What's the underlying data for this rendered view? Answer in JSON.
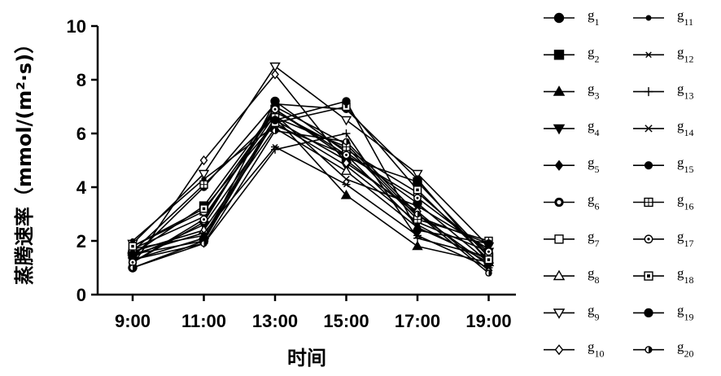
{
  "chart_data": {
    "type": "line",
    "categories": [
      "9:00",
      "11:00",
      "13:00",
      "15:00",
      "17:00",
      "19:00"
    ],
    "ylim": [
      0,
      10
    ],
    "yticks": [
      "0",
      "2",
      "4",
      "6",
      "8",
      "10"
    ],
    "xlabel": "时间",
    "ylabel": "蒸腾速率（mmol/(m²·s)）",
    "grid": false,
    "legend_position": "right",
    "series": [
      {
        "name": "g",
        "sub": "1",
        "marker": "circle-filled",
        "values": [
          1.0,
          2.0,
          7.2,
          5.3,
          3.4,
          1.2
        ]
      },
      {
        "name": "g",
        "sub": "2",
        "marker": "square-filled",
        "values": [
          1.5,
          3.3,
          6.9,
          5.1,
          4.2,
          1.4
        ]
      },
      {
        "name": "g",
        "sub": "3",
        "marker": "triangle-filled",
        "values": [
          1.7,
          2.2,
          6.6,
          3.7,
          1.8,
          1.2
        ]
      },
      {
        "name": "g",
        "sub": "4",
        "marker": "triangle-down-filled",
        "values": [
          1.4,
          2.6,
          6.4,
          4.8,
          2.7,
          1.6
        ]
      },
      {
        "name": "g",
        "sub": "5",
        "marker": "diamond-filled",
        "values": [
          1.3,
          2.1,
          6.5,
          5.0,
          3.0,
          1.1
        ]
      },
      {
        "name": "g",
        "sub": "6",
        "marker": "circle-ring",
        "values": [
          1.2,
          2.7,
          7.0,
          5.6,
          2.9,
          1.9
        ]
      },
      {
        "name": "g",
        "sub": "7",
        "marker": "square-open",
        "values": [
          1.8,
          3.1,
          6.8,
          5.4,
          3.8,
          1.5
        ]
      },
      {
        "name": "g",
        "sub": "8",
        "marker": "triangle-open",
        "values": [
          1.6,
          2.4,
          6.2,
          4.6,
          2.5,
          1.3
        ]
      },
      {
        "name": "g",
        "sub": "9",
        "marker": "triangle-down-open",
        "values": [
          1.9,
          4.5,
          8.5,
          6.5,
          4.5,
          1.8
        ]
      },
      {
        "name": "g",
        "sub": "10",
        "marker": "diamond-open",
        "values": [
          1.1,
          5.0,
          8.2,
          4.9,
          3.1,
          0.9
        ]
      },
      {
        "name": "g",
        "sub": "11",
        "marker": "dot-small",
        "values": [
          2.0,
          4.3,
          6.3,
          5.2,
          2.6,
          1.2
        ]
      },
      {
        "name": "g",
        "sub": "12",
        "marker": "star",
        "values": [
          1.5,
          2.3,
          5.5,
          4.1,
          2.2,
          1.0
        ]
      },
      {
        "name": "g",
        "sub": "13",
        "marker": "plus",
        "values": [
          1.3,
          1.9,
          5.4,
          6.0,
          2.1,
          1.4
        ]
      },
      {
        "name": "g",
        "sub": "14",
        "marker": "cross",
        "values": [
          1.7,
          2.9,
          6.7,
          4.3,
          3.3,
          1.7
        ]
      },
      {
        "name": "g",
        "sub": "15",
        "marker": "circle-filled-small",
        "values": [
          1.4,
          4.0,
          7.1,
          6.9,
          4.3,
          1.2
        ]
      },
      {
        "name": "g",
        "sub": "16",
        "marker": "square-cross",
        "values": [
          1.6,
          4.1,
          6.6,
          5.5,
          2.8,
          2.0
        ]
      },
      {
        "name": "g",
        "sub": "17",
        "marker": "circle-dot",
        "values": [
          1.2,
          2.8,
          6.9,
          5.2,
          3.6,
          1.6
        ]
      },
      {
        "name": "g",
        "sub": "18",
        "marker": "square-dot",
        "values": [
          1.8,
          3.2,
          6.4,
          7.0,
          3.9,
          1.3
        ]
      },
      {
        "name": "g",
        "sub": "19",
        "marker": "circle-filled-mid",
        "values": [
          1.5,
          2.0,
          6.5,
          7.2,
          2.4,
          1.9
        ]
      },
      {
        "name": "g",
        "sub": "20",
        "marker": "circle-half",
        "values": [
          1.0,
          1.9,
          6.1,
          5.7,
          3.0,
          0.8
        ]
      }
    ]
  }
}
